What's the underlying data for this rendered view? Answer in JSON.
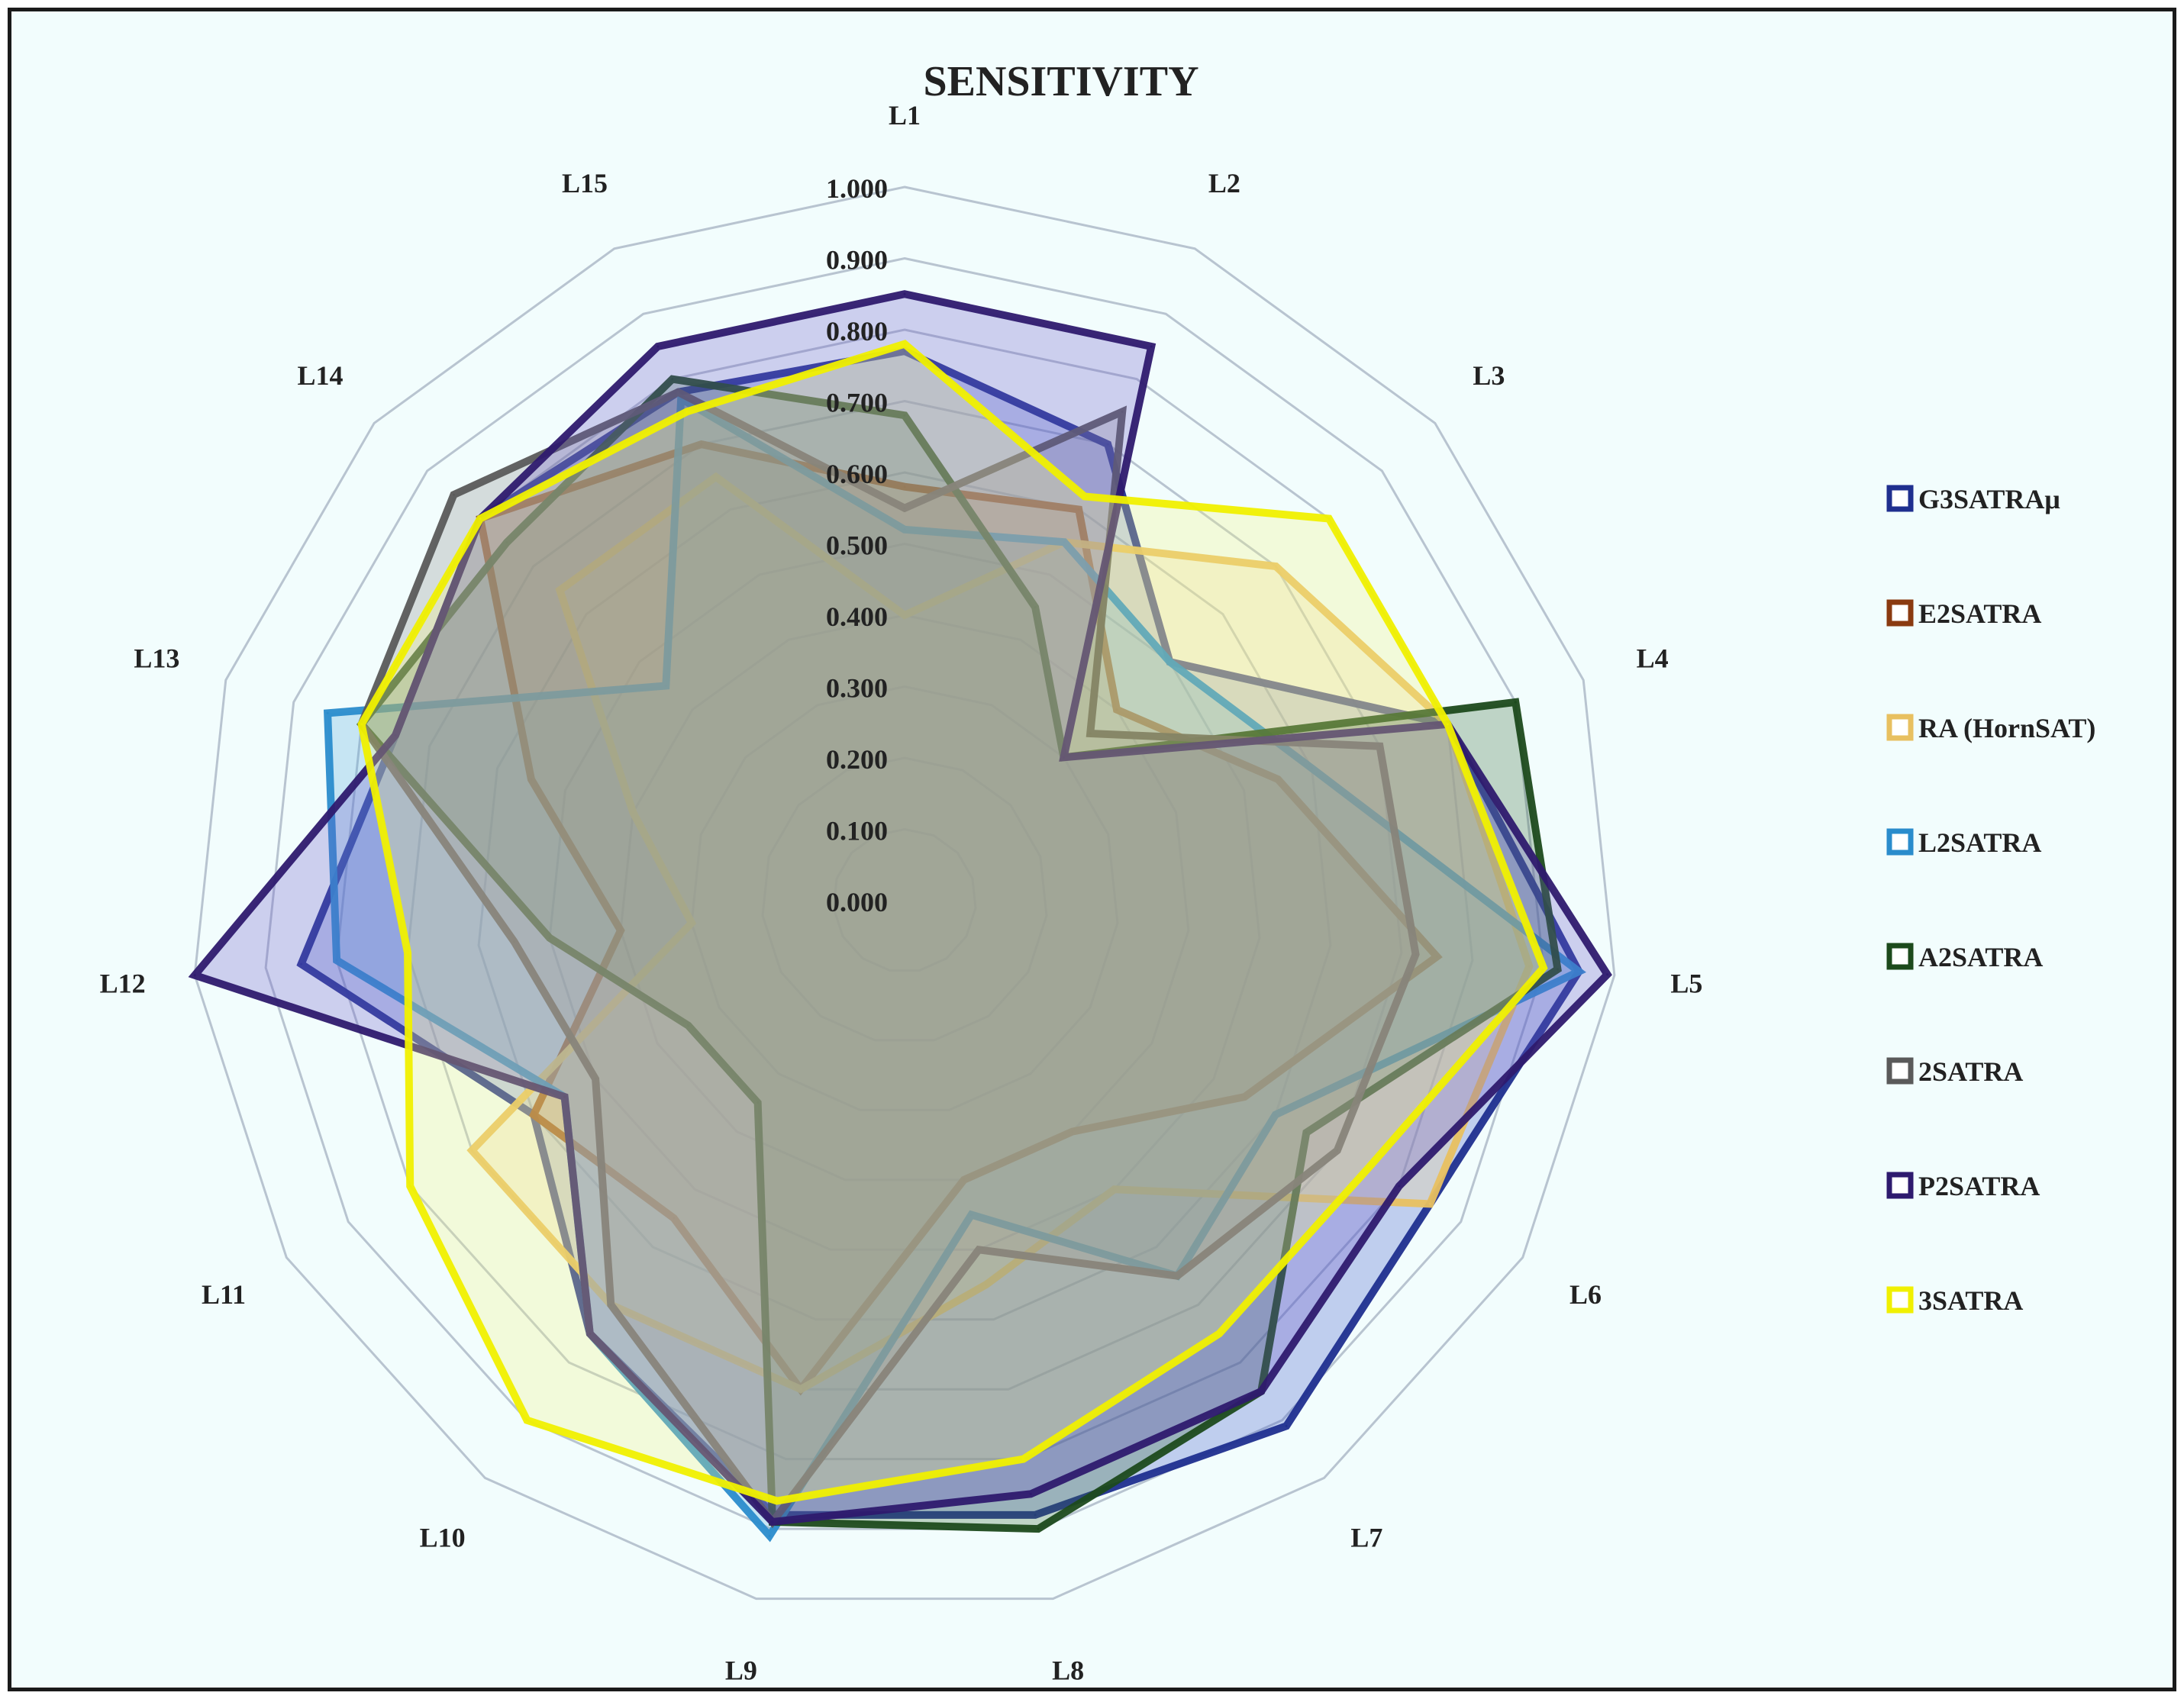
{
  "chart_data": {
    "type": "radar",
    "title": "SENSITIVITY",
    "categories": [
      "L1",
      "L2",
      "L3",
      "L4",
      "L5",
      "L6",
      "L7",
      "L8",
      "L9",
      "L10",
      "L11",
      "L12",
      "L13",
      "L14",
      "L15"
    ],
    "ticks": [
      "0.000",
      "0.100",
      "0.200",
      "0.300",
      "0.400",
      "0.500",
      "0.600",
      "0.700",
      "0.800",
      "0.900",
      "1.000"
    ],
    "rlim": [
      0,
      1.0
    ],
    "legend_position": "right",
    "series": [
      {
        "name": "G3SATRAμ",
        "color": "#1f2f8f",
        "fill": "#3d55c8",
        "values": [
          0.77,
          0.7,
          0.5,
          0.8,
          0.95,
          0.85,
          0.91,
          0.88,
          0.88,
          0.75,
          0.6,
          0.85,
          0.75,
          0.8,
          0.78
        ]
      },
      {
        "name": "E2SATRA",
        "color": "#8a3a10",
        "fill": "#b86a30",
        "values": [
          0.58,
          0.6,
          0.4,
          0.55,
          0.75,
          0.55,
          0.4,
          0.4,
          0.7,
          0.55,
          0.6,
          0.4,
          0.55,
          0.8,
          0.7
        ]
      },
      {
        "name": "RA (HornSAT)",
        "color": "#e8c060",
        "fill": "#f2d890",
        "values": [
          0.4,
          0.55,
          0.7,
          0.8,
          0.88,
          0.85,
          0.5,
          0.55,
          0.7,
          0.7,
          0.7,
          0.3,
          0.4,
          0.65,
          0.65
        ]
      },
      {
        "name": "L2SATRA",
        "color": "#2a8ccc",
        "fill": "#55a8dc",
        "values": [
          0.52,
          0.55,
          0.5,
          0.6,
          0.95,
          0.6,
          0.65,
          0.45,
          0.91,
          0.75,
          0.55,
          0.8,
          0.85,
          0.45,
          0.77
        ]
      },
      {
        "name": "A2SATRA",
        "color": "#1c4a1c",
        "fill": "#3a6a3a",
        "values": [
          0.68,
          0.45,
          0.3,
          0.9,
          0.92,
          0.65,
          0.85,
          0.9,
          0.89,
          0.35,
          0.35,
          0.5,
          0.8,
          0.75,
          0.8
        ]
      },
      {
        "name": "2SATRA",
        "color": "#5a5a5a",
        "fill": "#8a8a8a",
        "values": [
          0.55,
          0.75,
          0.35,
          0.7,
          0.72,
          0.7,
          0.65,
          0.5,
          0.89,
          0.7,
          0.5,
          0.55,
          0.8,
          0.85,
          0.78
        ]
      },
      {
        "name": "P2SATRA",
        "color": "#2e1a6e",
        "fill": "#6a58c8",
        "values": [
          0.85,
          0.85,
          0.3,
          0.8,
          0.99,
          0.8,
          0.85,
          0.85,
          0.89,
          0.75,
          0.55,
          1.0,
          0.75,
          0.8,
          0.85
        ]
      },
      {
        "name": "3SATRA",
        "color": "#f0f000",
        "fill": "#f4f480",
        "values": [
          0.78,
          0.62,
          0.8,
          0.8,
          0.9,
          0.75,
          0.75,
          0.8,
          0.86,
          0.9,
          0.8,
          0.7,
          0.8,
          0.8,
          0.75
        ]
      }
    ]
  }
}
